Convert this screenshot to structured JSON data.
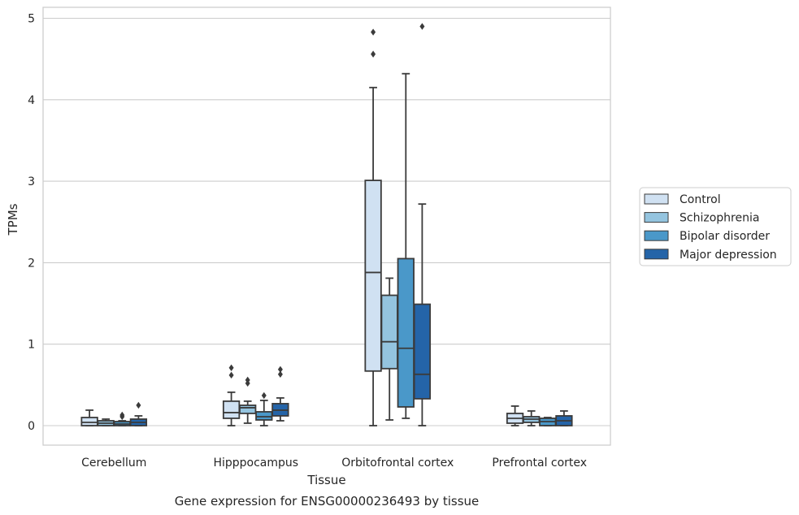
{
  "chart_data": {
    "type": "boxplot",
    "title": "Gene expression for ENSG00000236493 by tissue",
    "xlabel": "Tissue",
    "ylabel": "TPMs",
    "ylim": [
      -0.24,
      5.14
    ],
    "yticks": [
      0,
      1,
      2,
      3,
      4,
      5
    ],
    "grid": true,
    "legend_position": "right",
    "categories": [
      "Cerebellum",
      "Hipppocampus",
      "Orbitofrontal cortex",
      "Prefrontal cortex"
    ],
    "series": [
      {
        "name": "Control",
        "color": "#d0e1f2",
        "boxes": [
          {
            "whislo": 0.0,
            "q1": 0.0,
            "med": 0.04,
            "q3": 0.1,
            "whishi": 0.19,
            "fliers": []
          },
          {
            "whislo": 0.0,
            "q1": 0.09,
            "med": 0.16,
            "q3": 0.3,
            "whishi": 0.41,
            "fliers": [
              0.62,
              0.71
            ]
          },
          {
            "whislo": 0.0,
            "q1": 0.67,
            "med": 1.88,
            "q3": 3.01,
            "whishi": 4.15,
            "fliers": [
              4.56,
              4.83
            ]
          },
          {
            "whislo": 0.0,
            "q1": 0.03,
            "med": 0.09,
            "q3": 0.15,
            "whishi": 0.24,
            "fliers": []
          }
        ]
      },
      {
        "name": "Schizophrenia",
        "color": "#94c4df",
        "boxes": [
          {
            "whislo": 0.0,
            "q1": 0.0,
            "med": 0.03,
            "q3": 0.06,
            "whishi": 0.08,
            "fliers": []
          },
          {
            "whislo": 0.03,
            "q1": 0.15,
            "med": 0.22,
            "q3": 0.25,
            "whishi": 0.3,
            "fliers": [
              0.52,
              0.56
            ]
          },
          {
            "whislo": 0.07,
            "q1": 0.7,
            "med": 1.03,
            "q3": 1.6,
            "whishi": 1.81,
            "fliers": []
          },
          {
            "whislo": 0.0,
            "q1": 0.04,
            "med": 0.08,
            "q3": 0.11,
            "whishi": 0.18,
            "fliers": []
          }
        ]
      },
      {
        "name": "Bipolar disorder",
        "color": "#4a98c9",
        "boxes": [
          {
            "whislo": 0.0,
            "q1": 0.0,
            "med": 0.02,
            "q3": 0.05,
            "whishi": 0.06,
            "fliers": [
              0.11,
              0.13
            ]
          },
          {
            "whislo": 0.0,
            "q1": 0.07,
            "med": 0.11,
            "q3": 0.17,
            "whishi": 0.31,
            "fliers": [
              0.37
            ]
          },
          {
            "whislo": 0.09,
            "q1": 0.23,
            "med": 0.95,
            "q3": 2.05,
            "whishi": 4.32,
            "fliers": []
          },
          {
            "whislo": 0.0,
            "q1": 0.0,
            "med": 0.05,
            "q3": 0.09,
            "whishi": 0.1,
            "fliers": []
          }
        ]
      },
      {
        "name": "Major depression",
        "color": "#2464a8",
        "boxes": [
          {
            "whislo": 0.0,
            "q1": 0.0,
            "med": 0.04,
            "q3": 0.08,
            "whishi": 0.12,
            "fliers": [
              0.25
            ]
          },
          {
            "whislo": 0.06,
            "q1": 0.12,
            "med": 0.19,
            "q3": 0.27,
            "whishi": 0.34,
            "fliers": [
              0.63,
              0.69
            ]
          },
          {
            "whislo": 0.0,
            "q1": 0.33,
            "med": 0.63,
            "q3": 1.49,
            "whishi": 2.72,
            "fliers": [
              4.9
            ]
          },
          {
            "whislo": 0.0,
            "q1": 0.0,
            "med": 0.06,
            "q3": 0.12,
            "whishi": 0.18,
            "fliers": []
          }
        ]
      }
    ]
  }
}
